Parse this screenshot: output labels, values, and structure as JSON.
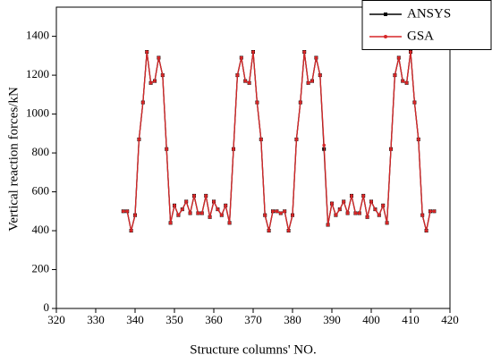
{
  "chart_data": {
    "type": "line",
    "xlabel": "Structure columns' NO.",
    "ylabel": "Vertical reaction forces/kN",
    "x": [
      337,
      338,
      339,
      340,
      341,
      342,
      343,
      344,
      345,
      346,
      347,
      348,
      349,
      350,
      351,
      352,
      353,
      354,
      355,
      356,
      357,
      358,
      359,
      360,
      361,
      362,
      363,
      364,
      365,
      366,
      367,
      368,
      369,
      370,
      371,
      372,
      373,
      374,
      375,
      376,
      377,
      378,
      379,
      380,
      381,
      382,
      383,
      384,
      385,
      386,
      387,
      388,
      389,
      390,
      391,
      392,
      393,
      394,
      395,
      396,
      397,
      398,
      399,
      400,
      401,
      402,
      403,
      404,
      405,
      406,
      407,
      408,
      409,
      410,
      411,
      412,
      413,
      414,
      415,
      416
    ],
    "series": [
      {
        "name": "ANSYS",
        "color": "#000000",
        "marker": "square",
        "values": [
          500,
          500,
          400,
          480,
          870,
          1060,
          1320,
          1160,
          1170,
          1290,
          1200,
          820,
          440,
          530,
          480,
          510,
          550,
          490,
          580,
          490,
          490,
          580,
          470,
          550,
          510,
          480,
          530,
          440,
          820,
          1200,
          1290,
          1170,
          1160,
          1320,
          1060,
          870,
          480,
          400,
          500,
          500,
          490,
          500,
          400,
          480,
          870,
          1060,
          1320,
          1160,
          1170,
          1290,
          1200,
          820,
          430,
          540,
          480,
          510,
          550,
          490,
          580,
          490,
          490,
          580,
          470,
          550,
          510,
          480,
          530,
          440,
          820,
          1200,
          1290,
          1170,
          1160,
          1320,
          1060,
          870,
          480,
          400,
          500,
          500
        ]
      },
      {
        "name": "GSA",
        "color": "#d62728",
        "marker": "circle",
        "values": [
          500,
          500,
          400,
          480,
          870,
          1060,
          1320,
          1160,
          1170,
          1290,
          1200,
          820,
          440,
          530,
          480,
          510,
          550,
          490,
          580,
          490,
          490,
          580,
          470,
          550,
          510,
          480,
          530,
          440,
          820,
          1200,
          1290,
          1170,
          1160,
          1320,
          1060,
          870,
          480,
          400,
          500,
          500,
          490,
          500,
          400,
          480,
          870,
          1060,
          1320,
          1160,
          1170,
          1290,
          1200,
          840,
          430,
          540,
          480,
          510,
          550,
          490,
          580,
          490,
          490,
          580,
          470,
          550,
          510,
          480,
          530,
          440,
          820,
          1200,
          1290,
          1170,
          1160,
          1320,
          1060,
          870,
          480,
          400,
          500,
          500
        ]
      }
    ],
    "xlim": [
      320,
      420
    ],
    "xticks": [
      320,
      330,
      340,
      350,
      360,
      370,
      380,
      390,
      400,
      410,
      420
    ],
    "ylim": [
      0,
      1550
    ],
    "yticks": [
      0,
      200,
      400,
      600,
      800,
      1000,
      1200,
      1400
    ],
    "legend": "upper-right"
  }
}
